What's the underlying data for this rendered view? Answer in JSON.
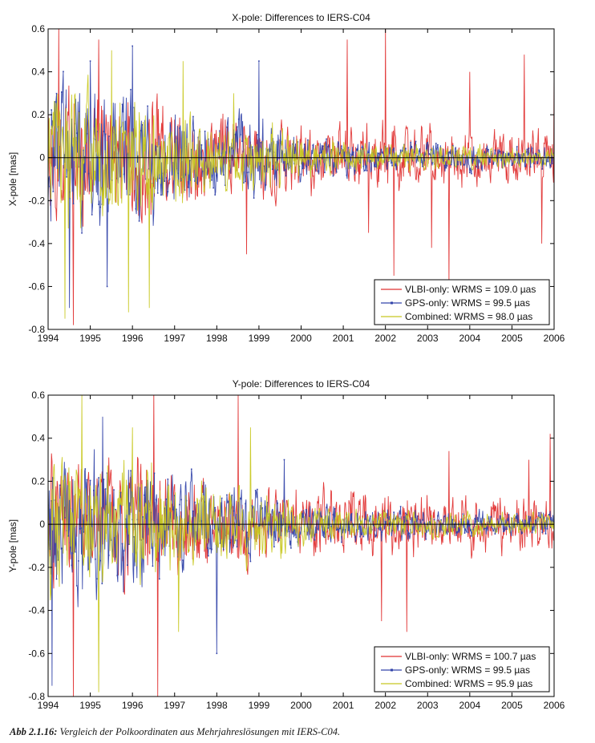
{
  "chart_data": [
    {
      "type": "line",
      "title": "X-pole: Differences to IERS-C04",
      "ylabel": "X-pole [mas]",
      "xlabel": "",
      "xlim": [
        1994,
        2006
      ],
      "ylim": [
        -0.8,
        0.6
      ],
      "x_ticks": [
        "1994",
        "1995",
        "1996",
        "1997",
        "1998",
        "1999",
        "2000",
        "2001",
        "2002",
        "2003",
        "2004",
        "2005",
        "2006"
      ],
      "y_ticks": [
        "0.6",
        "0.4",
        "0.2",
        "0",
        "-0.2",
        "-0.4",
        "-0.6",
        "-0.8"
      ],
      "legend_position": "bottom-right",
      "reference_line": 0,
      "series": [
        {
          "name": "VLBI-only: WRMS = 109.0 µas",
          "color": "#e03030",
          "marker": "none",
          "envelope": [
            [
              1994,
              0.4
            ],
            [
              1995,
              0.38
            ],
            [
              1996,
              0.36
            ],
            [
              1997,
              0.28
            ],
            [
              1998,
              0.24
            ],
            [
              1999,
              0.22
            ],
            [
              2000,
              0.2
            ],
            [
              2001,
              0.19
            ],
            [
              2002,
              0.18
            ],
            [
              2003,
              0.17
            ],
            [
              2004,
              0.16
            ],
            [
              2005,
              0.15
            ],
            [
              2006,
              0.15
            ]
          ],
          "spikes": [
            [
              1994.25,
              0.62
            ],
            [
              1994.6,
              -0.78
            ],
            [
              1995.2,
              0.55
            ],
            [
              1998.7,
              -0.45
            ],
            [
              2001.1,
              0.55
            ],
            [
              2001.6,
              -0.35
            ],
            [
              2002.0,
              0.6
            ],
            [
              2002.2,
              -0.55
            ],
            [
              2003.1,
              -0.42
            ],
            [
              2003.5,
              -0.6
            ],
            [
              2004.0,
              0.4
            ],
            [
              2005.3,
              0.48
            ],
            [
              2005.7,
              -0.4
            ],
            [
              2006.0,
              0.4
            ]
          ]
        },
        {
          "name": "GPS-only: WRMS = 99.5 µas",
          "color": "#3344aa",
          "marker": "point",
          "envelope": [
            [
              1994,
              0.42
            ],
            [
              1995,
              0.4
            ],
            [
              1996,
              0.38
            ],
            [
              1997,
              0.28
            ],
            [
              1998,
              0.24
            ],
            [
              1999,
              0.2
            ],
            [
              2000,
              0.14
            ],
            [
              2001,
              0.1
            ],
            [
              2002,
              0.09
            ],
            [
              2003,
              0.08
            ],
            [
              2004,
              0.08
            ],
            [
              2005,
              0.07
            ],
            [
              2006,
              0.07
            ]
          ],
          "spikes": [
            [
              1994.5,
              -0.7
            ],
            [
              1995.0,
              0.45
            ],
            [
              1995.4,
              -0.6
            ],
            [
              1996.0,
              0.52
            ],
            [
              1999.0,
              0.45
            ]
          ]
        },
        {
          "name": "Combined: WRMS = 98.0 µas",
          "color": "#c8c822",
          "marker": "none",
          "envelope": [
            [
              1994,
              0.4
            ],
            [
              1995,
              0.38
            ],
            [
              1996,
              0.36
            ],
            [
              1997,
              0.26
            ],
            [
              1998,
              0.22
            ],
            [
              1999,
              0.19
            ],
            [
              2000,
              0.13
            ],
            [
              2001,
              0.09
            ],
            [
              2002,
              0.08
            ],
            [
              2003,
              0.07
            ],
            [
              2004,
              0.07
            ],
            [
              2005,
              0.06
            ],
            [
              2006,
              0.06
            ]
          ],
          "spikes": [
            [
              1994.4,
              -0.75
            ],
            [
              1995.5,
              0.5
            ],
            [
              1995.9,
              -0.72
            ],
            [
              1996.4,
              -0.7
            ],
            [
              1997.2,
              0.45
            ],
            [
              1998.4,
              0.3
            ]
          ]
        }
      ]
    },
    {
      "type": "line",
      "title": "Y-pole: Differences to IERS-C04",
      "ylabel": "Y-pole [mas]",
      "xlabel": "",
      "xlim": [
        1994,
        2006
      ],
      "ylim": [
        -0.8,
        0.6
      ],
      "x_ticks": [
        "1994",
        "1995",
        "1996",
        "1997",
        "1998",
        "1999",
        "2000",
        "2001",
        "2002",
        "2003",
        "2004",
        "2005",
        "2006"
      ],
      "y_ticks": [
        "0.6",
        "0.4",
        "0.2",
        "0",
        "-0.2",
        "-0.4",
        "-0.6",
        "-0.8"
      ],
      "legend_position": "bottom-right",
      "reference_line": 0,
      "series": [
        {
          "name": "VLBI-only: WRMS = 100.7 µas",
          "color": "#e03030",
          "marker": "none",
          "envelope": [
            [
              1994,
              0.38
            ],
            [
              1995,
              0.36
            ],
            [
              1996,
              0.34
            ],
            [
              1997,
              0.28
            ],
            [
              1998,
              0.24
            ],
            [
              1999,
              0.22
            ],
            [
              2000,
              0.2
            ],
            [
              2001,
              0.19
            ],
            [
              2002,
              0.18
            ],
            [
              2003,
              0.17
            ],
            [
              2004,
              0.16
            ],
            [
              2005,
              0.15
            ],
            [
              2006,
              0.15
            ]
          ],
          "spikes": [
            [
              1994.6,
              -0.8
            ],
            [
              1996.5,
              0.62
            ],
            [
              1996.6,
              -0.8
            ],
            [
              1998.5,
              0.6
            ],
            [
              2001.9,
              -0.45
            ],
            [
              2002.5,
              -0.5
            ],
            [
              2003.5,
              0.34
            ],
            [
              2005.4,
              0.3
            ],
            [
              2005.9,
              0.42
            ]
          ]
        },
        {
          "name": "GPS-only: WRMS = 99.5 µas",
          "color": "#3344aa",
          "marker": "point",
          "envelope": [
            [
              1994,
              0.4
            ],
            [
              1995,
              0.38
            ],
            [
              1996,
              0.36
            ],
            [
              1997,
              0.28
            ],
            [
              1998,
              0.24
            ],
            [
              1999,
              0.2
            ],
            [
              2000,
              0.14
            ],
            [
              2001,
              0.1
            ],
            [
              2002,
              0.09
            ],
            [
              2003,
              0.08
            ],
            [
              2004,
              0.08
            ],
            [
              2005,
              0.07
            ],
            [
              2006,
              0.07
            ]
          ],
          "spikes": [
            [
              1994.1,
              -0.75
            ],
            [
              1995.3,
              0.5
            ],
            [
              1998.0,
              -0.6
            ],
            [
              1999.6,
              0.3
            ]
          ]
        },
        {
          "name": "Combined: WRMS = 95.9 µas",
          "color": "#c8c822",
          "marker": "none",
          "envelope": [
            [
              1994,
              0.38
            ],
            [
              1995,
              0.36
            ],
            [
              1996,
              0.34
            ],
            [
              1997,
              0.26
            ],
            [
              1998,
              0.22
            ],
            [
              1999,
              0.19
            ],
            [
              2000,
              0.13
            ],
            [
              2001,
              0.09
            ],
            [
              2002,
              0.08
            ],
            [
              2003,
              0.07
            ],
            [
              2004,
              0.07
            ],
            [
              2005,
              0.06
            ],
            [
              2006,
              0.06
            ]
          ],
          "spikes": [
            [
              1994.8,
              0.6
            ],
            [
              1995.2,
              -0.78
            ],
            [
              1996.0,
              0.45
            ],
            [
              1997.1,
              -0.5
            ],
            [
              1998.8,
              0.45
            ]
          ]
        }
      ]
    }
  ],
  "caption": {
    "label": "Abb 2.1.16:",
    "text": "Vergleich der Polkoordinaten aus Mehrjahreslösungen mit IERS-C04."
  }
}
